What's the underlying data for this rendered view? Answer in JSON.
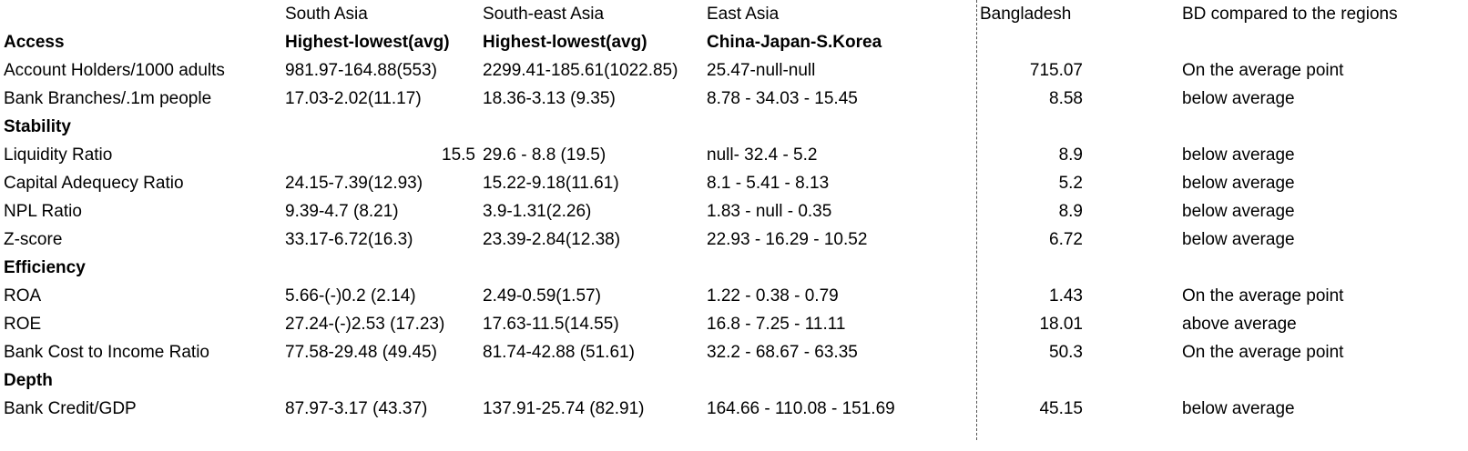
{
  "header": {
    "south_asia": "South Asia",
    "southeast_asia": "South-east Asia",
    "east_asia": "East Asia",
    "bangladesh": "Bangladesh",
    "comparison": "BD compared to the regions"
  },
  "sections": [
    {
      "title": "Access",
      "subheaders": {
        "south_asia": "Highest-lowest(avg)",
        "southeast_asia": "Highest-lowest(avg)",
        "east_asia": "China-Japan-S.Korea"
      },
      "rows": [
        {
          "label": "Account Holders/1000 adults",
          "south_asia": "981.97-164.88(553)",
          "southeast_asia": "2299.41-185.61(1022.85)",
          "east_asia": "25.47-null-null",
          "bangladesh": "715.07",
          "comparison": "On the average point"
        },
        {
          "label": "Bank Branches/.1m people",
          "south_asia": "17.03-2.02(11.17)",
          "southeast_asia": "18.36-3.13 (9.35)",
          "east_asia": "8.78 - 34.03 - 15.45",
          "bangladesh": "8.58",
          "comparison": "below average"
        }
      ]
    },
    {
      "title": "Stability",
      "rows": [
        {
          "label": "Liquidity Ratio",
          "south_asia": "15.5",
          "southeast_asia": "29.6 - 8.8 (19.5)",
          "east_asia": "null- 32.4 - 5.2",
          "bangladesh": "8.9",
          "comparison": "below average"
        },
        {
          "label": "Capital Adequecy Ratio",
          "south_asia": "24.15-7.39(12.93)",
          "southeast_asia": "15.22-9.18(11.61)",
          "east_asia": "8.1 - 5.41 - 8.13",
          "bangladesh": "5.2",
          "comparison": "below average"
        },
        {
          "label": "NPL Ratio",
          "south_asia": "9.39-4.7 (8.21)",
          "southeast_asia": "3.9-1.31(2.26)",
          "east_asia": "1.83 - null - 0.35",
          "bangladesh": "8.9",
          "comparison": "below average"
        },
        {
          "label": "Z-score",
          "south_asia": "33.17-6.72(16.3)",
          "southeast_asia": "23.39-2.84(12.38)",
          "east_asia": "22.93 - 16.29 - 10.52",
          "bangladesh": "6.72",
          "comparison": "below average"
        }
      ]
    },
    {
      "title": "Efficiency",
      "rows": [
        {
          "label": "ROA",
          "south_asia": "5.66-(-)0.2 (2.14)",
          "southeast_asia": "2.49-0.59(1.57)",
          "east_asia": "1.22 - 0.38 - 0.79",
          "bangladesh": "1.43",
          "comparison": "On the average point"
        },
        {
          "label": "ROE",
          "south_asia": "27.24-(-)2.53 (17.23)",
          "southeast_asia": "17.63-11.5(14.55)",
          "east_asia": "16.8 - 7.25 - 11.11",
          "bangladesh": "18.01",
          "comparison": "above average"
        },
        {
          "label": "Bank Cost to Income Ratio",
          "south_asia": "77.58-29.48 (49.45)",
          "southeast_asia": "81.74-42.88 (51.61)",
          "east_asia": "32.2 - 68.67 - 63.35",
          "bangladesh": "50.3",
          "comparison": "On the average point"
        }
      ]
    },
    {
      "title": "Depth",
      "rows": [
        {
          "label": "Bank Credit/GDP",
          "south_asia": "87.97-3.17 (43.37)",
          "southeast_asia": "137.91-25.74 (82.91)",
          "east_asia": "164.66 - 110.08 - 151.69",
          "bangladesh": "45.15",
          "comparison": "below average"
        }
      ]
    }
  ]
}
